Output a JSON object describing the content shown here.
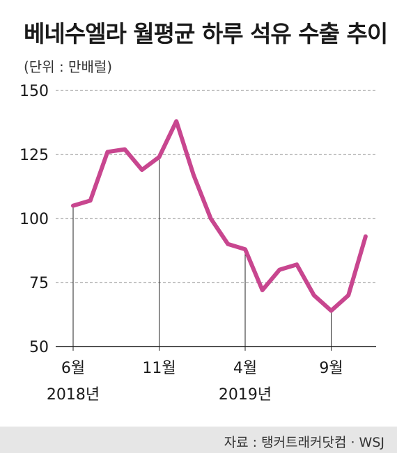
{
  "header": {
    "title": "베네수엘라 월평균 하루 석유 수출 추이",
    "unit": "(단위 : 만배럴)"
  },
  "footer": {
    "source": "자료 : 탱커트래커닷컴 · WSJ"
  },
  "colors": {
    "line": "#c8468f",
    "grid": "#8a8a8a",
    "axis": "#1a1a1a",
    "footer_band": "#e6e6e6"
  },
  "chart_data": {
    "type": "line",
    "title": "베네수엘라 월평균 하루 석유 수출 추이",
    "ylabel": "(단위 : 만배럴)",
    "ylim": [
      50,
      150
    ],
    "yticks": [
      50,
      75,
      100,
      125,
      150
    ],
    "grid": "horizontal dashed",
    "x": [
      "2018-06",
      "2018-07",
      "2018-08",
      "2018-09",
      "2018-10",
      "2018-11",
      "2018-12",
      "2019-01",
      "2019-02",
      "2019-03",
      "2019-04",
      "2019-05",
      "2019-06",
      "2019-07",
      "2019-08",
      "2019-09",
      "2019-10",
      "2019-11"
    ],
    "xticks": [
      {
        "index": 0,
        "label": "6월",
        "sublabel": "2018년"
      },
      {
        "index": 5,
        "label": "11월",
        "sublabel": ""
      },
      {
        "index": 10,
        "label": "4월",
        "sublabel": "2019년"
      },
      {
        "index": 15,
        "label": "9월",
        "sublabel": ""
      }
    ],
    "series": [
      {
        "values": [
          105,
          107,
          126,
          127,
          119,
          124,
          138,
          117,
          100,
          90,
          88,
          72,
          80,
          82,
          70,
          64,
          70,
          93
        ]
      }
    ]
  }
}
